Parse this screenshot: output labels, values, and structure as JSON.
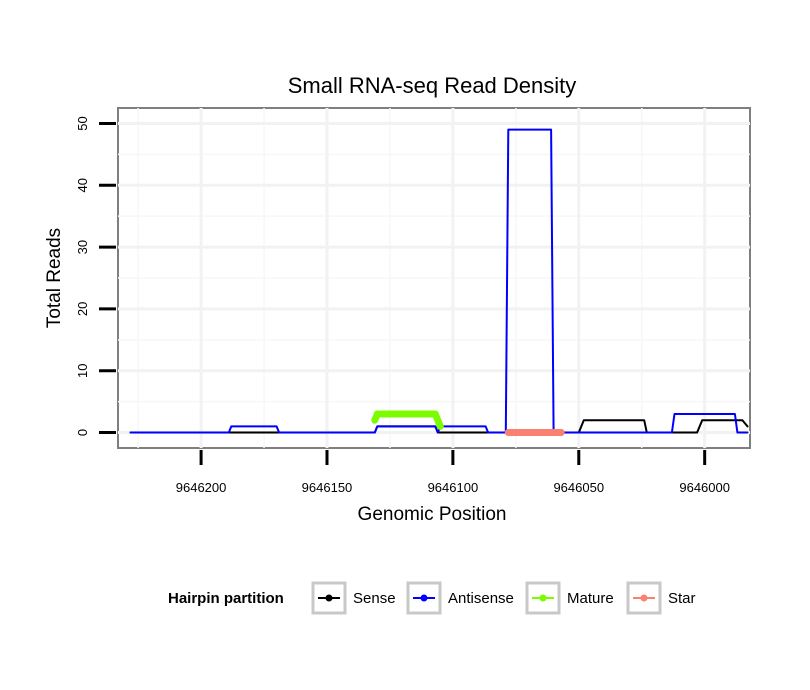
{
  "chart_data": {
    "type": "line",
    "title": "Small RNA-seq Read Density",
    "xlabel": "Genomic Position",
    "ylabel": "Total Reads",
    "xlim": [
      9646233,
      9645982
    ],
    "x_reversed": true,
    "ylim": [
      -2.5,
      52.5
    ],
    "x_ticks": [
      9646200,
      9646150,
      9646100,
      9646050,
      9646000
    ],
    "x_tick_labels": [
      "9646200",
      "9646150",
      "9646100",
      "9646050",
      "9646000"
    ],
    "y_ticks": [
      0,
      10,
      20,
      30,
      40,
      50
    ],
    "y_tick_labels": [
      "0",
      "10",
      "20",
      "30",
      "40",
      "50"
    ],
    "grid": true,
    "legend": {
      "title": "Hairpin partition",
      "placement": "bottom",
      "entries": [
        "Sense",
        "Antisense",
        "Mature",
        "Star"
      ]
    },
    "series": [
      {
        "name": "Sense",
        "color": "#000000",
        "points": [
          [
            9646228,
            0
          ],
          [
            9646131,
            0
          ],
          [
            9646130,
            1
          ],
          [
            9646107,
            1
          ],
          [
            9646106,
            0
          ],
          [
            9646050,
            0
          ],
          [
            9646048,
            2
          ],
          [
            9646024,
            2
          ],
          [
            9646023,
            0
          ],
          [
            9646003,
            0
          ],
          [
            9646001,
            2
          ],
          [
            9645985,
            2
          ],
          [
            9645983,
            1
          ]
        ]
      },
      {
        "name": "Antisense",
        "color": "#0000ff",
        "points": [
          [
            9646228,
            0
          ],
          [
            9646189,
            0
          ],
          [
            9646188,
            1
          ],
          [
            9646170,
            1
          ],
          [
            9646169,
            0
          ],
          [
            9646131,
            0
          ],
          [
            9646130,
            1
          ],
          [
            9646107,
            1
          ],
          [
            9646106,
            0
          ],
          [
            9646105,
            1
          ],
          [
            9646087,
            1
          ],
          [
            9646086,
            0
          ],
          [
            9646079,
            0
          ],
          [
            9646078,
            49
          ],
          [
            9646061,
            49
          ],
          [
            9646060,
            0
          ],
          [
            9646013,
            0
          ],
          [
            9646012,
            3
          ],
          [
            9645988,
            3
          ],
          [
            9645987,
            0
          ],
          [
            9645983,
            0
          ]
        ]
      },
      {
        "name": "Mature",
        "color": "#7cfc00",
        "points": [
          [
            9646131,
            2
          ],
          [
            9646130,
            3
          ],
          [
            9646107,
            3
          ],
          [
            9646106,
            2
          ],
          [
            9646105,
            1
          ]
        ]
      },
      {
        "name": "Star",
        "color": "#fa8072",
        "points": [
          [
            9646078,
            0
          ],
          [
            9646057,
            0
          ]
        ]
      }
    ]
  }
}
